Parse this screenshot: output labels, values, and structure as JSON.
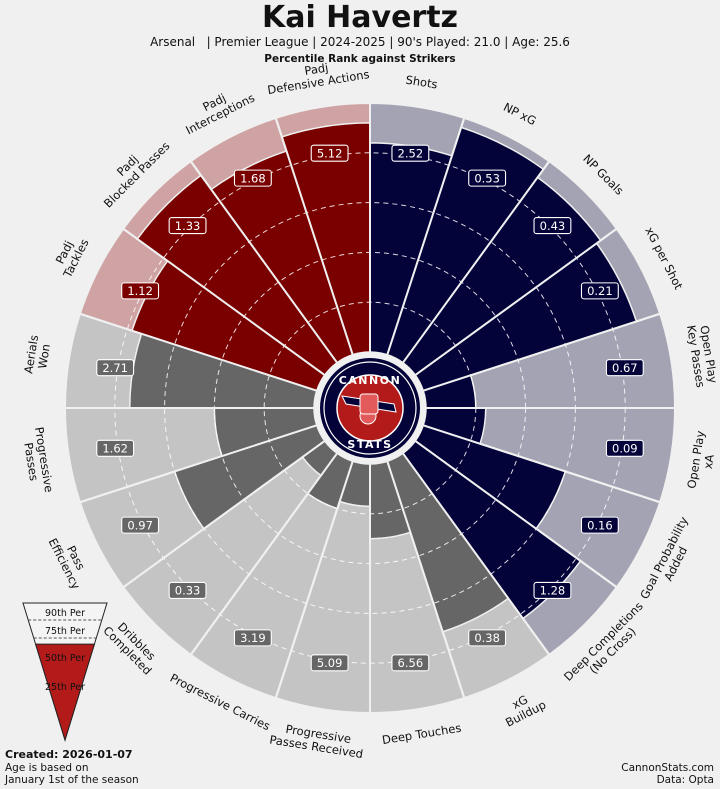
{
  "header": {
    "title": "Kai Havertz",
    "subtitle": "Arsenal   | Premier League | 2024-2025 | 90's Played: 21.0 | Age: 25.6",
    "rank_note": "Percentile Rank against Strikers"
  },
  "logo": {
    "top_text": "CANNON",
    "bottom_text": "STATS"
  },
  "legend": {
    "items": [
      {
        "label": "90th Per",
        "percentile": 90
      },
      {
        "label": "75th Per",
        "percentile": 75
      },
      {
        "label": "50th Per",
        "percentile": 50
      },
      {
        "label": "25th Per",
        "percentile": 25
      }
    ]
  },
  "footer": {
    "created": "Created: 2026-01-07",
    "age_note": "Age is based on\nJanuary 1st of the season",
    "site": "CannonStats.com",
    "source": "Data: Opta"
  },
  "colors": {
    "attack": "#03033a",
    "attack_bg": "#a3a3b3",
    "defense": "#7a0000",
    "defense_bg": "#cfa3a3",
    "possession": "#666666",
    "possession_bg": "#c4c4c4",
    "logo_red": "#b31b1b"
  },
  "chart_data": {
    "type": "polar-bar",
    "title": "Kai Havertz",
    "scale": "percentile",
    "rlim": [
      0,
      100
    ],
    "grid": true,
    "metrics": [
      {
        "name": "Shots",
        "group": "attack",
        "value": 2.52,
        "percentile": 84
      },
      {
        "name": "NP xG",
        "group": "attack",
        "value": 0.53,
        "percentile": 96
      },
      {
        "name": "NP Goals",
        "group": "attack",
        "value": 0.43,
        "percentile": 92
      },
      {
        "name": "xG per Shot",
        "group": "attack",
        "value": 0.21,
        "percentile": 90
      },
      {
        "name": "Open Play\nKey Passes",
        "group": "attack",
        "value": 0.67,
        "percentile": 20
      },
      {
        "name": "Open Play\nxA",
        "group": "attack",
        "value": 0.09,
        "percentile": 24
      },
      {
        "name": "Goal Probability\nAdded",
        "group": "attack",
        "value": 0.16,
        "percentile": 60
      },
      {
        "name": "Deep Completions\n(No Cross)",
        "group": "attack",
        "value": 1.28,
        "percentile": 82
      },
      {
        "name": "xG\nBuildup",
        "group": "possession",
        "value": 0.38,
        "percentile": 72
      },
      {
        "name": "Deep Touches",
        "group": "possession",
        "value": 6.56,
        "percentile": 30
      },
      {
        "name": "Progressive\nPasses Received",
        "group": "possession",
        "value": 5.09,
        "percentile": 17
      },
      {
        "name": "Progressive Carries",
        "group": "possession",
        "value": 3.19,
        "percentile": 20
      },
      {
        "name": "Dribbles\nCompleted",
        "group": "possession",
        "value": 0.33,
        "percentile": 11
      },
      {
        "name": "Pass\nEfficiency",
        "group": "possession",
        "value": 0.97,
        "percentile": 60
      },
      {
        "name": "Progressive\nPasses",
        "group": "possession",
        "value": 1.62,
        "percentile": 40
      },
      {
        "name": "Aerials\nWon",
        "group": "possession",
        "value": 2.71,
        "percentile": 74
      },
      {
        "name": "Padj\nTackles",
        "group": "defense",
        "value": 1.12,
        "percentile": 78
      },
      {
        "name": "Padj\nBlocked Passes",
        "group": "defense",
        "value": 1.33,
        "percentile": 93
      },
      {
        "name": "Padj\nInterceptions",
        "group": "defense",
        "value": 1.68,
        "percentile": 86
      },
      {
        "name": "Padj\nDefensive Actions",
        "group": "defense",
        "value": 5.12,
        "percentile": 92
      }
    ]
  }
}
